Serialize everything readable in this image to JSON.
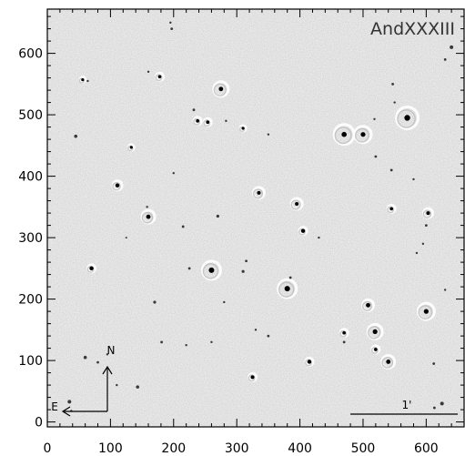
{
  "figure": {
    "title": "AndXXXIII",
    "x_ticks": [
      "0",
      "100",
      "200",
      "300",
      "400",
      "500",
      "600"
    ],
    "y_ticks": [
      "0",
      "100",
      "200",
      "300",
      "400",
      "500",
      "600"
    ],
    "x_range": [
      0,
      660
    ],
    "y_range": [
      -8,
      672
    ],
    "compass": {
      "north": "N",
      "east": "E"
    },
    "scale_bar": {
      "label": "1'",
      "length_pixels": 170
    }
  },
  "colors": {
    "background": "#e9e9e9",
    "frame": "#000000",
    "star": "#000000",
    "halo": "#bdbdbd"
  }
}
